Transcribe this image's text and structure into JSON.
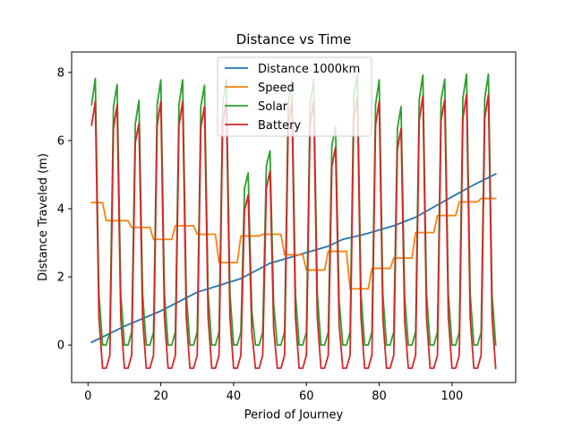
{
  "chart_data": {
    "type": "line",
    "title": "Distance vs Time",
    "xlabel": "Period of Journey",
    "ylabel": "Distance Traveled (m)",
    "xlim": [
      -4.5,
      117.5
    ],
    "ylim": [
      -1.1,
      8.6
    ],
    "x_ticks": [
      0,
      20,
      40,
      60,
      80,
      100
    ],
    "y_ticks": [
      0,
      2,
      4,
      6,
      8
    ],
    "grid": false,
    "legend_position": "top-center",
    "series": [
      {
        "name": "Distance 1000km",
        "color": "#1f77b4",
        "points": [
          [
            1,
            0.08
          ],
          [
            10,
            0.55
          ],
          [
            20,
            1.0
          ],
          [
            30,
            1.55
          ],
          [
            36,
            1.75
          ],
          [
            42,
            1.95
          ],
          [
            50,
            2.4
          ],
          [
            58,
            2.65
          ],
          [
            66,
            2.9
          ],
          [
            70,
            3.1
          ],
          [
            76,
            3.25
          ],
          [
            84,
            3.5
          ],
          [
            90,
            3.75
          ],
          [
            100,
            4.35
          ],
          [
            106,
            4.7
          ],
          [
            112,
            5.02
          ]
        ]
      },
      {
        "name": "Speed",
        "color": "#ff7f0e",
        "points": [
          [
            1,
            4.18
          ],
          [
            4,
            4.18
          ],
          [
            5,
            3.65
          ],
          [
            11,
            3.65
          ],
          [
            12,
            3.45
          ],
          [
            17,
            3.45
          ],
          [
            18,
            3.1
          ],
          [
            23,
            3.1
          ],
          [
            24,
            3.5
          ],
          [
            29,
            3.5
          ],
          [
            30,
            3.25
          ],
          [
            35,
            3.25
          ],
          [
            36,
            2.42
          ],
          [
            41,
            2.42
          ],
          [
            42,
            3.2
          ],
          [
            47,
            3.2
          ],
          [
            48,
            3.25
          ],
          [
            53,
            3.25
          ],
          [
            54,
            2.65
          ],
          [
            59,
            2.65
          ],
          [
            60,
            2.2
          ],
          [
            65,
            2.2
          ],
          [
            66,
            2.75
          ],
          [
            71,
            2.75
          ],
          [
            72,
            1.65
          ],
          [
            77,
            1.65
          ],
          [
            78,
            2.25
          ],
          [
            83,
            2.25
          ],
          [
            84,
            2.55
          ],
          [
            89,
            2.55
          ],
          [
            90,
            3.3
          ],
          [
            95,
            3.3
          ],
          [
            96,
            3.8
          ],
          [
            101,
            3.8
          ],
          [
            102,
            4.2
          ],
          [
            107,
            4.2
          ],
          [
            108,
            4.3
          ],
          [
            112,
            4.3
          ]
        ]
      },
      {
        "name": "Solar",
        "color": "#2ca02c",
        "points": [
          [
            1,
            7.05
          ],
          [
            2,
            7.82
          ],
          [
            3,
            1.5
          ],
          [
            4,
            0.0
          ],
          [
            5,
            0.0
          ],
          [
            6,
            0.38
          ],
          [
            7,
            7.0
          ],
          [
            8,
            7.65
          ],
          [
            9,
            1.5
          ],
          [
            10,
            0.0
          ],
          [
            11,
            0.0
          ],
          [
            12,
            0.38
          ],
          [
            13,
            6.5
          ],
          [
            14,
            7.18
          ],
          [
            15,
            1.5
          ],
          [
            16,
            0.0
          ],
          [
            17,
            0.0
          ],
          [
            18,
            0.38
          ],
          [
            19,
            7.05
          ],
          [
            20,
            7.78
          ],
          [
            21,
            1.5
          ],
          [
            22,
            0.0
          ],
          [
            23,
            0.0
          ],
          [
            24,
            0.38
          ],
          [
            25,
            7.05
          ],
          [
            26,
            7.78
          ],
          [
            27,
            1.5
          ],
          [
            28,
            0.0
          ],
          [
            29,
            0.0
          ],
          [
            30,
            0.38
          ],
          [
            31,
            7.0
          ],
          [
            32,
            7.62
          ],
          [
            33,
            1.5
          ],
          [
            34,
            0.0
          ],
          [
            35,
            0.0
          ],
          [
            36,
            0.38
          ],
          [
            37,
            7.05
          ],
          [
            38,
            7.78
          ],
          [
            39,
            1.5
          ],
          [
            40,
            0.0
          ],
          [
            41,
            0.0
          ],
          [
            42,
            0.38
          ],
          [
            43,
            4.6
          ],
          [
            44,
            5.05
          ],
          [
            45,
            1.0
          ],
          [
            46,
            0.0
          ],
          [
            47,
            0.0
          ],
          [
            48,
            0.38
          ],
          [
            49,
            5.25
          ],
          [
            50,
            5.7
          ],
          [
            51,
            1.2
          ],
          [
            52,
            0.0
          ],
          [
            53,
            0.0
          ],
          [
            54,
            0.38
          ],
          [
            55,
            7.05
          ],
          [
            56,
            7.78
          ],
          [
            57,
            1.5
          ],
          [
            58,
            0.0
          ],
          [
            59,
            0.0
          ],
          [
            60,
            0.38
          ],
          [
            61,
            7.05
          ],
          [
            62,
            7.78
          ],
          [
            63,
            1.5
          ],
          [
            64,
            0.0
          ],
          [
            65,
            0.0
          ],
          [
            66,
            0.38
          ],
          [
            67,
            5.85
          ],
          [
            68,
            6.4
          ],
          [
            69,
            1.3
          ],
          [
            70,
            0.0
          ],
          [
            71,
            0.0
          ],
          [
            72,
            0.38
          ],
          [
            73,
            7.3
          ],
          [
            74,
            7.92
          ],
          [
            75,
            1.5
          ],
          [
            76,
            0.0
          ],
          [
            77,
            0.0
          ],
          [
            78,
            0.38
          ],
          [
            79,
            7.05
          ],
          [
            80,
            7.78
          ],
          [
            81,
            1.5
          ],
          [
            82,
            0.0
          ],
          [
            83,
            0.0
          ],
          [
            84,
            0.38
          ],
          [
            85,
            6.35
          ],
          [
            86,
            7.0
          ],
          [
            87,
            1.4
          ],
          [
            88,
            0.0
          ],
          [
            89,
            0.0
          ],
          [
            90,
            0.38
          ],
          [
            91,
            7.2
          ],
          [
            92,
            7.92
          ],
          [
            93,
            1.5
          ],
          [
            94,
            0.0
          ],
          [
            95,
            0.0
          ],
          [
            96,
            0.38
          ],
          [
            97,
            7.2
          ],
          [
            98,
            7.8
          ],
          [
            99,
            1.5
          ],
          [
            100,
            0.0
          ],
          [
            101,
            0.0
          ],
          [
            102,
            0.38
          ],
          [
            103,
            7.25
          ],
          [
            104,
            7.95
          ],
          [
            105,
            1.5
          ],
          [
            106,
            0.0
          ],
          [
            107,
            0.0
          ],
          [
            108,
            0.38
          ],
          [
            109,
            7.25
          ],
          [
            110,
            7.95
          ],
          [
            111,
            1.5
          ],
          [
            112,
            0.0
          ]
        ]
      },
      {
        "name": "Battery",
        "color": "#d62728",
        "points": [
          [
            1,
            6.45
          ],
          [
            2,
            7.15
          ],
          [
            3,
            0.8
          ],
          [
            4,
            -0.68
          ],
          [
            5,
            -0.68
          ],
          [
            6,
            -0.3
          ],
          [
            7,
            6.35
          ],
          [
            8,
            7.05
          ],
          [
            9,
            0.8
          ],
          [
            10,
            -0.68
          ],
          [
            11,
            -0.68
          ],
          [
            12,
            -0.3
          ],
          [
            13,
            5.95
          ],
          [
            14,
            6.5
          ],
          [
            15,
            0.8
          ],
          [
            16,
            -0.68
          ],
          [
            17,
            -0.68
          ],
          [
            18,
            -0.3
          ],
          [
            19,
            6.45
          ],
          [
            20,
            7.15
          ],
          [
            21,
            0.8
          ],
          [
            22,
            -0.68
          ],
          [
            23,
            -0.68
          ],
          [
            24,
            -0.3
          ],
          [
            25,
            6.45
          ],
          [
            26,
            7.15
          ],
          [
            27,
            0.8
          ],
          [
            28,
            -0.68
          ],
          [
            29,
            -0.68
          ],
          [
            30,
            -0.3
          ],
          [
            31,
            6.4
          ],
          [
            32,
            7.0
          ],
          [
            33,
            0.8
          ],
          [
            34,
            -0.68
          ],
          [
            35,
            -0.68
          ],
          [
            36,
            -0.3
          ],
          [
            37,
            6.45
          ],
          [
            38,
            7.15
          ],
          [
            39,
            0.8
          ],
          [
            40,
            -0.68
          ],
          [
            41,
            -0.68
          ],
          [
            42,
            -0.3
          ],
          [
            43,
            3.95
          ],
          [
            44,
            4.4
          ],
          [
            45,
            0.4
          ],
          [
            46,
            -0.68
          ],
          [
            47,
            -0.68
          ],
          [
            48,
            -0.3
          ],
          [
            49,
            4.6
          ],
          [
            50,
            5.1
          ],
          [
            51,
            0.5
          ],
          [
            52,
            -0.68
          ],
          [
            53,
            -0.68
          ],
          [
            54,
            -0.3
          ],
          [
            55,
            6.45
          ],
          [
            56,
            7.15
          ],
          [
            57,
            0.8
          ],
          [
            58,
            -0.68
          ],
          [
            59,
            -0.68
          ],
          [
            60,
            -0.3
          ],
          [
            61,
            6.45
          ],
          [
            62,
            7.15
          ],
          [
            63,
            0.8
          ],
          [
            64,
            -0.68
          ],
          [
            65,
            -0.68
          ],
          [
            66,
            -0.3
          ],
          [
            67,
            5.25
          ],
          [
            68,
            5.8
          ],
          [
            69,
            0.6
          ],
          [
            70,
            -0.68
          ],
          [
            71,
            -0.68
          ],
          [
            72,
            -0.3
          ],
          [
            73,
            6.6
          ],
          [
            74,
            7.3
          ],
          [
            75,
            0.8
          ],
          [
            76,
            -0.68
          ],
          [
            77,
            -0.68
          ],
          [
            78,
            -0.3
          ],
          [
            79,
            6.45
          ],
          [
            80,
            7.15
          ],
          [
            81,
            0.8
          ],
          [
            82,
            -0.68
          ],
          [
            83,
            -0.68
          ],
          [
            84,
            -0.3
          ],
          [
            85,
            5.75
          ],
          [
            86,
            6.35
          ],
          [
            87,
            0.7
          ],
          [
            88,
            -0.68
          ],
          [
            89,
            -0.68
          ],
          [
            90,
            -0.3
          ],
          [
            91,
            6.6
          ],
          [
            92,
            7.3
          ],
          [
            93,
            0.8
          ],
          [
            94,
            -0.68
          ],
          [
            95,
            -0.68
          ],
          [
            96,
            -0.3
          ],
          [
            97,
            6.6
          ],
          [
            98,
            7.2
          ],
          [
            99,
            0.8
          ],
          [
            100,
            -0.68
          ],
          [
            101,
            -0.68
          ],
          [
            102,
            -0.3
          ],
          [
            103,
            6.65
          ],
          [
            104,
            7.35
          ],
          [
            105,
            0.8
          ],
          [
            106,
            -0.68
          ],
          [
            107,
            -0.68
          ],
          [
            108,
            -0.3
          ],
          [
            109,
            6.65
          ],
          [
            110,
            7.35
          ],
          [
            111,
            0.8
          ],
          [
            112,
            -0.68
          ]
        ]
      }
    ]
  }
}
